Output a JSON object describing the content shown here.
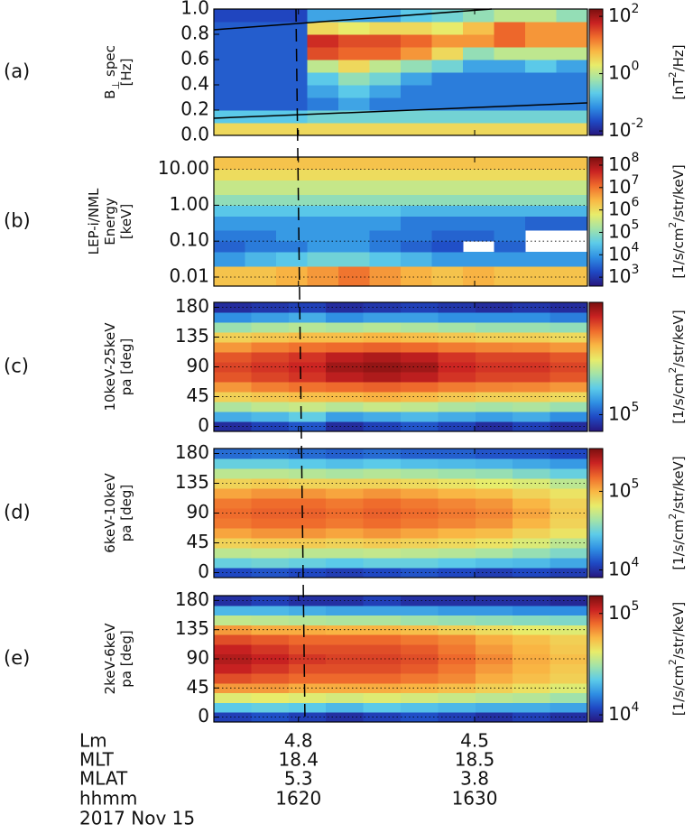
{
  "colormap": [
    "#27167e",
    "#1f49c4",
    "#2f8fe3",
    "#5ccbe9",
    "#a3e3a8",
    "#e8ec6a",
    "#f9b744",
    "#ef6b2c",
    "#c92222",
    "#7a0f0f"
  ],
  "chart_data": [
    {
      "type": "heatmap",
      "label": "(a)",
      "ylabel": [
        [
          "B",
          {
            "sub": "⊥"
          },
          " spec"
        ],
        [
          "[Hz]"
        ]
      ],
      "yscale": "linear",
      "ylim": [
        0,
        1
      ],
      "yticks": [
        {
          "value": 0,
          "label": "0.0"
        },
        0.2,
        0.4,
        0.6,
        0.8,
        {
          "value": 1,
          "label": "1.0"
        }
      ],
      "grid": false,
      "ybins": [
        0,
        0.1,
        0.2,
        0.3,
        0.4,
        0.5,
        0.6,
        0.7,
        0.8,
        0.9,
        1.0
      ],
      "z": [
        [
          3,
          3,
          3,
          3,
          3,
          3,
          3,
          3,
          3,
          3,
          3,
          3
        ],
        [
          0.2,
          0.2,
          0.2,
          0.3,
          0.3,
          0.3,
          0.3,
          0.3,
          0.3,
          0.3,
          0.3,
          0.3
        ],
        [
          0.03,
          0.03,
          0.03,
          0.05,
          0.1,
          0.05,
          0.05,
          0.05,
          0.05,
          0.05,
          0.05,
          0.05
        ],
        [
          0.03,
          0.03,
          0.03,
          0.1,
          0.2,
          0.1,
          0.05,
          0.05,
          0.05,
          0.05,
          0.05,
          0.05
        ],
        [
          0.03,
          0.03,
          0.03,
          0.2,
          0.5,
          0.3,
          0.1,
          0.05,
          0.05,
          0.05,
          0.05,
          0.05
        ],
        [
          0.03,
          0.03,
          0.03,
          1,
          3,
          1,
          0.5,
          0.3,
          0.1,
          0.1,
          0.2,
          0.1
        ],
        [
          0.03,
          0.03,
          0.03,
          30,
          20,
          20,
          10,
          3,
          0.5,
          1,
          1,
          1
        ],
        [
          0.03,
          0.03,
          0.03,
          50,
          30,
          30,
          20,
          10,
          10,
          20,
          10,
          10
        ],
        [
          0.03,
          0.03,
          0.03,
          3,
          2,
          3,
          3,
          2,
          5,
          20,
          10,
          10
        ],
        [
          0.02,
          0.02,
          0.02,
          0.1,
          0.1,
          0.1,
          0.2,
          0.3,
          0.5,
          1,
          1,
          0.5
        ]
      ],
      "cscale": "log",
      "clim": [
        0.007,
        180
      ],
      "cticks": [
        {
          "value": 0.01,
          "label": "10",
          "exponent": "-2"
        },
        {
          "value": 1,
          "label": "10",
          "exponent": "0"
        },
        {
          "value": 100,
          "label": "10",
          "exponent": "2"
        }
      ],
      "clabel": [
        "[nT",
        {
          "sup": "2"
        },
        "/Hz]"
      ]
    },
    {
      "type": "heatmap",
      "label": "(b)",
      "ylabel": [
        [
          "LEP-i/NML"
        ],
        [
          "Energy"
        ],
        [
          "[keV]"
        ]
      ],
      "yscale": "log",
      "ylim": [
        0.0056,
        22
      ],
      "yticks": [
        0.01,
        {
          "value": 0.1,
          "label": "0.10"
        },
        {
          "value": 1,
          "label": "1.00"
        },
        {
          "value": 10,
          "label": "10.00"
        }
      ],
      "grid": true,
      "ybins": [
        0.0056,
        0.02,
        0.05,
        0.1,
        0.2,
        0.5,
        1,
        2,
        5,
        10,
        22
      ],
      "z": [
        [
          2000000.0,
          2000000.0,
          3000000.0,
          5000000.0,
          10000000.0,
          5000000.0,
          3000000.0,
          2000000.0,
          3000000.0,
          2000000.0,
          2000000.0,
          2000000.0
        ],
        [
          10000.0,
          20000.0,
          30000.0,
          50000.0,
          50000.0,
          30000.0,
          20000.0,
          10000.0,
          10000.0,
          10000.0,
          10000.0,
          10000.0
        ],
        [
          3000.0,
          5000.0,
          5000.0,
          10000.0,
          10000.0,
          5000.0,
          3000.0,
          2000.0,
          null,
          3000.0,
          null,
          null
        ],
        [
          5000.0,
          5000.0,
          10000.0,
          10000.0,
          10000.0,
          5000.0,
          5000.0,
          3000.0,
          3000.0,
          5000.0,
          null,
          null
        ],
        [
          10000.0,
          10000.0,
          10000.0,
          10000.0,
          10000.0,
          10000.0,
          5000.0,
          5000.0,
          5000.0,
          5000.0,
          3000.0,
          3000.0
        ],
        [
          30000.0,
          30000.0,
          30000.0,
          30000.0,
          30000.0,
          30000.0,
          20000.0,
          20000.0,
          20000.0,
          20000.0,
          20000.0,
          20000.0
        ],
        [
          100000.0,
          100000.0,
          100000.0,
          100000.0,
          100000.0,
          100000.0,
          100000.0,
          100000.0,
          100000.0,
          100000.0,
          100000.0,
          100000.0
        ],
        [
          300000.0,
          300000.0,
          300000.0,
          300000.0,
          300000.0,
          300000.0,
          300000.0,
          300000.0,
          300000.0,
          300000.0,
          300000.0,
          300000.0
        ],
        [
          1000000.0,
          1000000.0,
          1000000.0,
          1000000.0,
          1000000.0,
          1000000.0,
          1000000.0,
          1000000.0,
          1000000.0,
          1000000.0,
          1000000.0,
          1000000.0
        ],
        [
          2000000.0,
          2000000.0,
          2000000.0,
          2000000.0,
          2000000.0,
          2000000.0,
          2000000.0,
          2000000.0,
          2000000.0,
          2000000.0,
          2000000.0,
          2000000.0
        ]
      ],
      "cscale": "log",
      "clim": [
        400,
        230000000.0
      ],
      "cticks": [
        {
          "value": 1000.0,
          "label": "10",
          "exponent": "3"
        },
        {
          "value": 10000.0,
          "label": "10",
          "exponent": "4"
        },
        {
          "value": 100000.0,
          "label": "10",
          "exponent": "5"
        },
        {
          "value": 1000000.0,
          "label": "10",
          "exponent": "6"
        },
        {
          "value": 10000000.0,
          "label": "10",
          "exponent": "7"
        },
        {
          "value": 100000000.0,
          "label": "10",
          "exponent": "8"
        }
      ],
      "clabel": [
        "[1/s/cm",
        {
          "sup": "2"
        },
        "/str/keV]"
      ]
    },
    {
      "type": "heatmap",
      "label": "(c)",
      "ylabel": [
        [
          "10keV-25keV"
        ],
        [
          "pa [deg]"
        ]
      ],
      "yscale": "linear",
      "ylim": [
        -7.5,
        187.5
      ],
      "yticks": [
        0,
        45,
        90,
        135,
        180
      ],
      "grid": true,
      "ybins": [
        -7.5,
        7.5,
        22.5,
        37.5,
        52.5,
        67.5,
        82.5,
        97.5,
        112.5,
        127.5,
        142.5,
        157.5,
        172.5,
        187.5
      ],
      "z": [
        [
          80000.0,
          90000.0,
          100000.0,
          80000.0,
          90000.0,
          100000.0,
          90000.0,
          80000.0,
          90000.0,
          80000.0
        ],
        [
          150000.0,
          160000.0,
          180000.0,
          140000.0,
          150000.0,
          160000.0,
          150000.0,
          140000.0,
          150000.0,
          130000.0
        ],
        [
          250000.0,
          270000.0,
          280000.0,
          260000.0,
          280000.0,
          270000.0,
          250000.0,
          240000.0,
          250000.0,
          230000.0
        ],
        [
          380000.0,
          400000.0,
          420000.0,
          430000.0,
          450000.0,
          430000.0,
          400000.0,
          380000.0,
          380000.0,
          360000.0
        ],
        [
          500000.0,
          550000.0,
          580000.0,
          600000.0,
          620000.0,
          600000.0,
          560000.0,
          540000.0,
          530000.0,
          500000.0
        ],
        [
          650000.0,
          700000.0,
          750000.0,
          850000.0,
          900000.0,
          850000.0,
          750000.0,
          700000.0,
          700000.0,
          650000.0
        ],
        [
          700000.0,
          750000.0,
          800000.0,
          950000.0,
          1000000.0,
          950000.0,
          800000.0,
          750000.0,
          750000.0,
          700000.0
        ],
        [
          650000.0,
          700000.0,
          750000.0,
          850000.0,
          900000.0,
          850000.0,
          750000.0,
          700000.0,
          700000.0,
          650000.0
        ],
        [
          500000.0,
          550000.0,
          580000.0,
          600000.0,
          620000.0,
          600000.0,
          560000.0,
          540000.0,
          530000.0,
          500000.0
        ],
        [
          380000.0,
          400000.0,
          420000.0,
          420000.0,
          440000.0,
          420000.0,
          400000.0,
          380000.0,
          380000.0,
          360000.0
        ],
        [
          230000.0,
          250000.0,
          260000.0,
          250000.0,
          260000.0,
          250000.0,
          240000.0,
          230000.0,
          230000.0,
          220000.0
        ],
        [
          130000.0,
          140000.0,
          150000.0,
          130000.0,
          140000.0,
          140000.0,
          130000.0,
          130000.0,
          130000.0,
          120000.0
        ],
        [
          80000.0,
          85000.0,
          90000.0,
          80000.0,
          85000.0,
          90000.0,
          85000.0,
          80000.0,
          85000.0,
          80000.0
        ]
      ],
      "cscale": "log",
      "clim": [
        70000.0,
        1100000.0
      ],
      "cticks": [
        {
          "value": 100000.0,
          "label": "10",
          "exponent": "5"
        }
      ],
      "clabel": [
        "[1/s/cm",
        {
          "sup": "2"
        },
        "/str/keV]"
      ]
    },
    {
      "type": "heatmap",
      "label": "(d)",
      "ylabel": [
        [
          "6keV-10keV"
        ],
        [
          "pa [deg]"
        ]
      ],
      "yscale": "linear",
      "ylim": [
        -7.5,
        187.5
      ],
      "yticks": [
        0,
        45,
        90,
        135,
        180
      ],
      "grid": true,
      "ybins": [
        -7.5,
        7.5,
        22.5,
        37.5,
        52.5,
        67.5,
        82.5,
        97.5,
        112.5,
        127.5,
        142.5,
        157.5,
        172.5,
        187.5
      ],
      "z": [
        [
          12000.0,
          13000.0,
          12000.0,
          11000.0,
          12000.0,
          13000.0,
          12000.0,
          11000.0,
          12000.0,
          11000.0
        ],
        [
          30000.0,
          32000.0,
          30000.0,
          28000.0,
          30000.0,
          30000.0,
          28000.0,
          26000.0,
          25000.0,
          22000.0
        ],
        [
          50000.0,
          52000.0,
          50000.0,
          50000.0,
          52000.0,
          50000.0,
          48000.0,
          45000.0,
          40000.0,
          35000.0
        ],
        [
          80000.0,
          85000.0,
          85000.0,
          80000.0,
          85000.0,
          80000.0,
          75000.0,
          70000.0,
          60000.0,
          50000.0
        ],
        [
          110000.0,
          120000.0,
          120000.0,
          110000.0,
          120000.0,
          110000.0,
          100000.0,
          95000.0,
          80000.0,
          70000.0
        ],
        [
          140000.0,
          150000.0,
          150000.0,
          140000.0,
          150000.0,
          140000.0,
          130000.0,
          120000.0,
          100000.0,
          80000.0
        ],
        [
          150000.0,
          160000.0,
          160000.0,
          150000.0,
          160000.0,
          150000.0,
          140000.0,
          130000.0,
          110000.0,
          85000.0
        ],
        [
          140000.0,
          150000.0,
          150000.0,
          140000.0,
          150000.0,
          140000.0,
          130000.0,
          120000.0,
          100000.0,
          80000.0
        ],
        [
          110000.0,
          120000.0,
          120000.0,
          110000.0,
          120000.0,
          110000.0,
          100000.0,
          95000.0,
          80000.0,
          70000.0
        ],
        [
          80000.0,
          85000.0,
          80000.0,
          80000.0,
          80000.0,
          75000.0,
          70000.0,
          65000.0,
          60000.0,
          50000.0
        ],
        [
          50000.0,
          50000.0,
          48000.0,
          45000.0,
          48000.0,
          45000.0,
          42000.0,
          40000.0,
          35000.0,
          30000.0
        ],
        [
          30000.0,
          30000.0,
          28000.0,
          26000.0,
          28000.0,
          26000.0,
          25000.0,
          24000.0,
          22000.0,
          20000.0
        ],
        [
          15000.0,
          16000.0,
          15000.0,
          14000.0,
          15000.0,
          14000.0,
          14000.0,
          13000.0,
          13000.0,
          12000.0
        ]
      ],
      "cscale": "log",
      "clim": [
        8000.0,
        350000.0
      ],
      "cticks": [
        {
          "value": 10000.0,
          "label": "10",
          "exponent": "4"
        },
        {
          "value": 100000.0,
          "label": "10",
          "exponent": "5"
        }
      ],
      "clabel": [
        "[1/s/cm",
        {
          "sup": "2"
        },
        "/str/keV]"
      ]
    },
    {
      "type": "heatmap",
      "label": "(e)",
      "ylabel": [
        [
          "2keV-6keV"
        ],
        [
          "pa [deg]"
        ]
      ],
      "yscale": "linear",
      "ylim": [
        -7.5,
        187.5
      ],
      "yticks": [
        0,
        45,
        90,
        135,
        180
      ],
      "grid": true,
      "ybins": [
        -7.5,
        7.5,
        22.5,
        37.5,
        52.5,
        67.5,
        82.5,
        97.5,
        112.5,
        127.5,
        142.5,
        157.5,
        172.5,
        187.5
      ],
      "z": [
        [
          11000.0,
          12000.0,
          11000.0,
          10000.0,
          11000.0,
          12000.0,
          11000.0,
          10000.0,
          11000.0,
          10000.0
        ],
        [
          22000.0,
          23000.0,
          22000.0,
          20000.0,
          22000.0,
          21000.0,
          20000.0,
          19000.0,
          19000.0,
          18000.0
        ],
        [
          40000.0,
          42000.0,
          40000.0,
          38000.0,
          40000.0,
          38000.0,
          36000.0,
          34000.0,
          33000.0,
          30000.0
        ],
        [
          65000.0,
          65000.0,
          60000.0,
          60000.0,
          60000.0,
          58000.0,
          55000.0,
          50000.0,
          45000.0,
          40000.0
        ],
        [
          90000.0,
          85000.0,
          80000.0,
          80000.0,
          80000.0,
          75000.0,
          70000.0,
          60000.0,
          55000.0,
          50000.0
        ],
        [
          110000.0,
          100000.0,
          90000.0,
          90000.0,
          90000.0,
          85000.0,
          75000.0,
          65000.0,
          58000.0,
          52000.0
        ],
        [
          120000.0,
          110000.0,
          100000.0,
          95000.0,
          95000.0,
          90000.0,
          80000.0,
          70000.0,
          60000.0,
          55000.0
        ],
        [
          110000.0,
          100000.0,
          90000.0,
          90000.0,
          90000.0,
          85000.0,
          75000.0,
          65000.0,
          58000.0,
          52000.0
        ],
        [
          90000.0,
          85000.0,
          80000.0,
          80000.0,
          80000.0,
          75000.0,
          70000.0,
          60000.0,
          55000.0,
          50000.0
        ],
        [
          65000.0,
          60000.0,
          60000.0,
          58000.0,
          58000.0,
          55000.0,
          50000.0,
          46000.0,
          42000.0,
          40000.0
        ],
        [
          35000.0,
          34000.0,
          33000.0,
          32000.0,
          32000.0,
          30000.0,
          29000.0,
          28000.0,
          27000.0,
          26000.0
        ],
        [
          20000.0,
          20000.0,
          19000.0,
          18000.0,
          18000.0,
          18000.0,
          17000.0,
          17000.0,
          16000.0,
          16000.0
        ],
        [
          10000.0,
          11000.0,
          10000.0,
          10000.0,
          11000.0,
          10000.0,
          10000.0,
          10000.0,
          10000.0,
          9500.0
        ]
      ],
      "cscale": "log",
      "clim": [
        8500.0,
        150000.0
      ],
      "cticks": [
        {
          "value": 10000.0,
          "label": "10",
          "exponent": "4"
        },
        {
          "value": 100000.0,
          "label": "10",
          "exponent": "5"
        }
      ],
      "clabel": [
        "[1/s/cm",
        {
          "sup": "2"
        },
        "/str/keV]"
      ]
    }
  ],
  "ephemeris": {
    "xlim": [
      1615.2,
      1636.4
    ],
    "xticks": [
      1620,
      1630
    ],
    "time_label": "hhmm",
    "rows": [
      {
        "name": "Lm",
        "values": [
          "4.8",
          "4.5"
        ]
      },
      {
        "name": "MLT",
        "values": [
          "18.4",
          "18.5"
        ]
      },
      {
        "name": "MLAT",
        "values": [
          "5.3",
          "3.8"
        ]
      }
    ],
    "date": "2017 Nov 15"
  }
}
